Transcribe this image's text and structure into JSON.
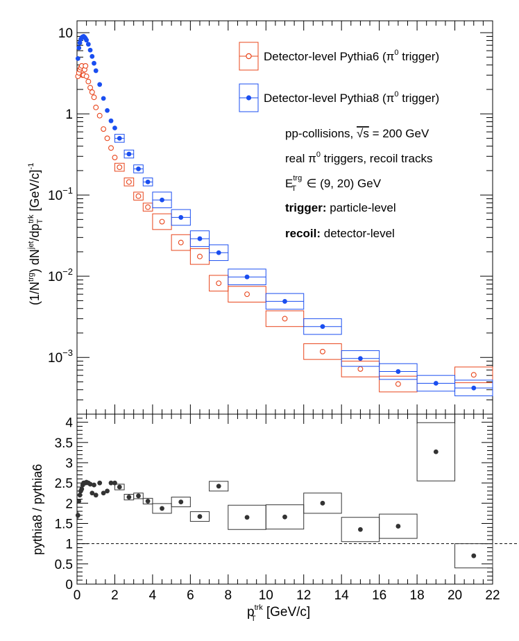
{
  "chart_data": [
    {
      "type": "scatter",
      "panel": "main",
      "y_scale": "log",
      "ylim": [
        0.0002,
        14
      ],
      "xlim": [
        0,
        22
      ],
      "ylabel_main": "(1/N",
      "ylabel_trg": "trg",
      "ylabel_mid": ") dN",
      "ylabel_jet": "jet",
      "ylabel_dp": "/dp",
      "ylabel_T": "T",
      "ylabel_trk": "trk",
      "ylabel_unit": " [GeV/c]",
      "ylabel_exp": "-1",
      "y_ticks": [
        {
          "v": 10,
          "t": "10"
        },
        {
          "v": 1,
          "t": "1"
        },
        {
          "v": 0.1,
          "b": "10",
          "e": "−1"
        },
        {
          "v": 0.01,
          "b": "10",
          "e": "−2"
        },
        {
          "v": 0.001,
          "b": "10",
          "e": "−3"
        }
      ],
      "legend": [
        {
          "text": "Detector-level Pythia6 (π",
          "sup": "0",
          "end": " trigger)"
        },
        {
          "text": "Detector-level Pythia8 (π",
          "sup": "0",
          "end": " trigger)"
        }
      ],
      "annotations": {
        "l1a": "pp-collisions, ",
        "l1b": "√s",
        "l1c": " = 200 GeV",
        "l2a": "real π",
        "l2b": "0",
        "l2c": " triggers, recoil tracks",
        "l3a": "E",
        "l3b": "trg",
        "l3c": "T",
        "l3d": " ∈ (9, 20) GeV",
        "l4a": "trigger:",
        "l4b": " particle-level",
        "l5a": "recoil:",
        "l5b": " detector-level"
      },
      "series": [
        {
          "name": "Detector-level Pythia6 (π0 trigger)",
          "color": "#e8441a",
          "marker": "open-circle",
          "points": [
            {
              "x": 0.05,
              "y": 2.9
            },
            {
              "x": 0.1,
              "y": 3.2
            },
            {
              "x": 0.15,
              "y": 3.5
            },
            {
              "x": 0.2,
              "y": 3.7
            },
            {
              "x": 0.25,
              "y": 3.9
            },
            {
              "x": 0.3,
              "y": 3.0
            },
            {
              "x": 0.35,
              "y": 3.0
            },
            {
              "x": 0.4,
              "y": 3.5
            },
            {
              "x": 0.45,
              "y": 3.9
            },
            {
              "x": 0.5,
              "y": 2.9
            },
            {
              "x": 0.6,
              "y": 2.5
            },
            {
              "x": 0.7,
              "y": 2.1
            },
            {
              "x": 0.8,
              "y": 1.85
            },
            {
              "x": 0.9,
              "y": 1.6
            },
            {
              "x": 1.0,
              "y": 1.2
            },
            {
              "x": 1.2,
              "y": 0.95
            },
            {
              "x": 1.4,
              "y": 0.65
            },
            {
              "x": 1.6,
              "y": 0.5
            },
            {
              "x": 1.8,
              "y": 0.38
            },
            {
              "x": 2.0,
              "y": 0.29
            },
            {
              "x": 2.25,
              "y": 0.22,
              "w": 0.5
            },
            {
              "x": 2.75,
              "y": 0.145,
              "w": 0.5
            },
            {
              "x": 3.25,
              "y": 0.097,
              "w": 0.5
            },
            {
              "x": 3.75,
              "y": 0.071,
              "w": 0.5
            },
            {
              "x": 4.5,
              "y": 0.047,
              "w": 1
            },
            {
              "x": 5.5,
              "y": 0.026,
              "w": 1
            },
            {
              "x": 6.5,
              "y": 0.0175,
              "w": 1
            },
            {
              "x": 7.5,
              "y": 0.0082,
              "w": 1
            },
            {
              "x": 9,
              "y": 0.006,
              "w": 2
            },
            {
              "x": 11,
              "y": 0.003,
              "w": 2
            },
            {
              "x": 13,
              "y": 0.00118,
              "w": 2
            },
            {
              "x": 15,
              "y": 0.00072,
              "w": 2
            },
            {
              "x": 17,
              "y": 0.00047,
              "w": 2
            },
            {
              "x": 21,
              "y": 0.00061,
              "w": 2
            }
          ]
        },
        {
          "name": "Detector-level Pythia8 (π0 trigger)",
          "color": "#1a4ef0",
          "marker": "filled-circle",
          "points": [
            {
              "x": 0.05,
              "y": 4.8
            },
            {
              "x": 0.1,
              "y": 6.5
            },
            {
              "x": 0.15,
              "y": 7.5
            },
            {
              "x": 0.2,
              "y": 8.3
            },
            {
              "x": 0.25,
              "y": 8.7
            },
            {
              "x": 0.3,
              "y": 8.9
            },
            {
              "x": 0.35,
              "y": 9.0
            },
            {
              "x": 0.4,
              "y": 8.8
            },
            {
              "x": 0.45,
              "y": 8.5
            },
            {
              "x": 0.5,
              "y": 8.1
            },
            {
              "x": 0.6,
              "y": 7.2
            },
            {
              "x": 0.7,
              "y": 6.1
            },
            {
              "x": 0.8,
              "y": 5.1
            },
            {
              "x": 0.9,
              "y": 4.2
            },
            {
              "x": 1.0,
              "y": 3.4
            },
            {
              "x": 1.2,
              "y": 2.3
            },
            {
              "x": 1.4,
              "y": 1.55
            },
            {
              "x": 1.6,
              "y": 1.1
            },
            {
              "x": 1.8,
              "y": 0.82
            },
            {
              "x": 2.0,
              "y": 0.67
            },
            {
              "x": 2.25,
              "y": 0.5,
              "w": 0.5
            },
            {
              "x": 2.75,
              "y": 0.32,
              "w": 0.5
            },
            {
              "x": 3.25,
              "y": 0.21,
              "w": 0.5
            },
            {
              "x": 3.75,
              "y": 0.145,
              "w": 0.5
            },
            {
              "x": 4.5,
              "y": 0.087,
              "w": 1
            },
            {
              "x": 5.5,
              "y": 0.053,
              "w": 1
            },
            {
              "x": 6.5,
              "y": 0.029,
              "w": 1
            },
            {
              "x": 7.5,
              "y": 0.0195,
              "w": 1
            },
            {
              "x": 9,
              "y": 0.0098,
              "w": 2
            },
            {
              "x": 11,
              "y": 0.0049,
              "w": 2
            },
            {
              "x": 13,
              "y": 0.0024,
              "w": 2
            },
            {
              "x": 15,
              "y": 0.00097,
              "w": 2
            },
            {
              "x": 17,
              "y": 0.00067,
              "w": 2
            },
            {
              "x": 19,
              "y": 0.00048,
              "w": 2
            },
            {
              "x": 21,
              "y": 0.00042,
              "w": 2
            }
          ]
        }
      ]
    },
    {
      "type": "scatter",
      "panel": "ratio",
      "ylabel": "pythia8 / pythia6",
      "xlabel_main": "p",
      "xlabel_sup": "trk",
      "xlabel_sub": "T",
      "xlabel_unit": " [GeV/c]",
      "xlim": [
        0,
        22
      ],
      "ylim": [
        0,
        4.2
      ],
      "x_ticks": [
        "0",
        "2",
        "4",
        "6",
        "8",
        "10",
        "12",
        "14",
        "16",
        "18",
        "20",
        "22"
      ],
      "y_ticks": [
        "0",
        "0.5",
        "1",
        "1.5",
        "2",
        "2.5",
        "3",
        "3.5",
        "4"
      ],
      "reference_line": 1,
      "color": "#333333",
      "points": [
        {
          "x": 0.05,
          "y": 1.7,
          "eh": 0.1
        },
        {
          "x": 0.1,
          "y": 2.05
        },
        {
          "x": 0.15,
          "y": 2.2
        },
        {
          "x": 0.2,
          "y": 2.3
        },
        {
          "x": 0.25,
          "y": 2.35
        },
        {
          "x": 0.3,
          "y": 2.45
        },
        {
          "x": 0.35,
          "y": 2.5
        },
        {
          "x": 0.4,
          "y": 2.5
        },
        {
          "x": 0.45,
          "y": 2.5
        },
        {
          "x": 0.5,
          "y": 2.52
        },
        {
          "x": 0.6,
          "y": 2.5
        },
        {
          "x": 0.7,
          "y": 2.47
        },
        {
          "x": 0.8,
          "y": 2.25
        },
        {
          "x": 0.9,
          "y": 2.45
        },
        {
          "x": 1.0,
          "y": 2.2
        },
        {
          "x": 1.2,
          "y": 2.5
        },
        {
          "x": 1.4,
          "y": 2.25
        },
        {
          "x": 1.6,
          "y": 2.3
        },
        {
          "x": 1.8,
          "y": 2.5
        },
        {
          "x": 2.0,
          "y": 2.5
        },
        {
          "x": 2.25,
          "y": 2.4,
          "w": 0.5
        },
        {
          "x": 2.75,
          "y": 2.15,
          "w": 0.5
        },
        {
          "x": 3.25,
          "y": 2.18,
          "w": 0.5
        },
        {
          "x": 3.75,
          "y": 2.05,
          "w": 0.5
        },
        {
          "x": 4.5,
          "y": 1.87,
          "w": 1
        },
        {
          "x": 5.5,
          "y": 2.03,
          "w": 1
        },
        {
          "x": 6.5,
          "y": 1.67,
          "w": 1
        },
        {
          "x": 7.5,
          "y": 2.42,
          "w": 1
        },
        {
          "x": 9,
          "y": 1.65,
          "w": 2
        },
        {
          "x": 11,
          "y": 1.66,
          "w": 2
        },
        {
          "x": 13,
          "y": 2.0,
          "w": 2
        },
        {
          "x": 15,
          "y": 1.35,
          "w": 2
        },
        {
          "x": 17,
          "y": 1.43,
          "w": 2
        },
        {
          "x": 19,
          "y": 3.27,
          "w": 2
        },
        {
          "x": 21,
          "y": 0.7,
          "w": 2
        }
      ]
    }
  ]
}
